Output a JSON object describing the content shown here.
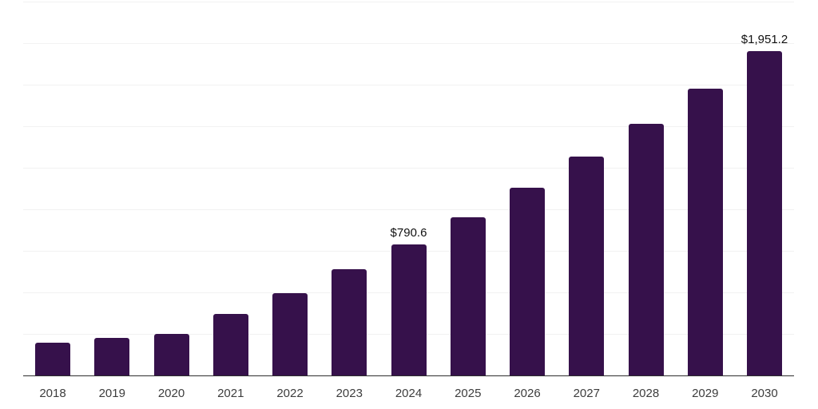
{
  "chart": {
    "background_color": "#FFFFFF"
  },
  "chart_data": {
    "type": "bar",
    "categories": [
      "2018",
      "2019",
      "2020",
      "2021",
      "2022",
      "2023",
      "2024",
      "2025",
      "2026",
      "2027",
      "2028",
      "2029",
      "2030"
    ],
    "values": [
      196,
      225,
      249,
      371,
      497,
      638,
      790.6,
      953,
      1130,
      1317,
      1513,
      1728,
      1951.2
    ],
    "data_labels": {
      "2024": "$790.6",
      "2030": "$1,951.2"
    },
    "ylim": [
      0,
      2250
    ],
    "grid_step": 250,
    "gridlines": "horizontal",
    "legend": "none",
    "y_axis_tick_labels_visible": false,
    "bar_color": "#36114B",
    "gridline_color": "#F2F2F2",
    "axis_line_color": "#2E2E2E",
    "tick_label_color": "#3D3D3D",
    "data_label_color": "#111111"
  }
}
